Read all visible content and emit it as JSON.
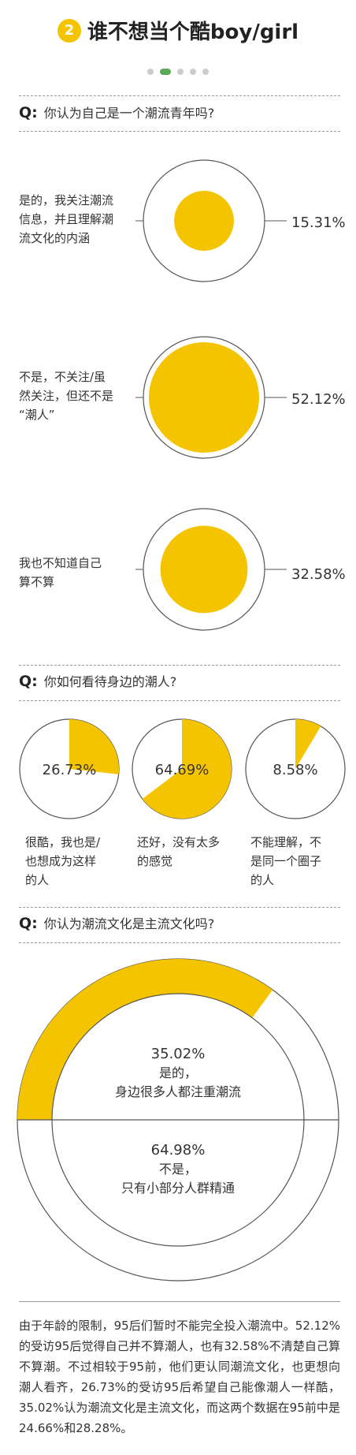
{
  "header": {
    "num": "2",
    "title": "谁不想当个酷boy/girl"
  },
  "pager": {
    "count": 5,
    "active": 1
  },
  "sections": [
    {
      "q": "Q:",
      "text": "你认为自己是一个潮流青年吗?"
    },
    {
      "q": "Q:",
      "text": "你如何看待身边的潮人?"
    },
    {
      "q": "Q:",
      "text": "你认为潮流文化是主流文化吗?"
    }
  ],
  "colors": {
    "accent": "#f5c400",
    "ring": "#555555"
  },
  "chart_data": [
    {
      "type": "bubble",
      "title": "你认为自己是一个潮流青年吗?",
      "items": [
        {
          "label": [
            "是的，我关注潮流",
            "信息，并且理解潮",
            "流文化的内涵"
          ],
          "value": 15.31,
          "text": "15.31%"
        },
        {
          "label": [
            "不是，不关注/虽",
            "然关注，但还不是",
            "“潮人”"
          ],
          "value": 52.12,
          "text": "52.12%"
        },
        {
          "label": [
            "我也不知道自己",
            "算不算"
          ],
          "value": 32.58,
          "text": "32.58%"
        }
      ]
    },
    {
      "type": "pie",
      "title": "你如何看待身边的潮人?",
      "items": [
        {
          "value": 26.73,
          "text": "26.73%",
          "label": [
            "很酷，我也是/",
            "也想成为这样",
            "的人"
          ]
        },
        {
          "value": 64.69,
          "text": "64.69%",
          "label": [
            "还好，没有太多",
            "的感觉"
          ]
        },
        {
          "value": 8.58,
          "text": "8.58%",
          "label": [
            "不能理解，不",
            "是同一个圈子",
            "的人"
          ]
        }
      ]
    },
    {
      "type": "donut",
      "title": "你认为潮流文化是主流文化吗?",
      "items": [
        {
          "value": 35.02,
          "text": "35.02%",
          "label": [
            "是的，",
            "身边很多人都注重潮流"
          ]
        },
        {
          "value": 64.98,
          "text": "64.98%",
          "label": [
            "不是，",
            "只有小部分人群精通"
          ]
        }
      ]
    }
  ],
  "footnote": "由于年龄的限制，95后们暂时不能完全投入潮流中。52.12%的受访95后觉得自己并不算潮人，也有32.58%不清楚自己算不算潮。不过相较于95前，他们更认同潮流文化，也更想向潮人看齐，26.73%的受访95后希望自己能像潮人一样酷，35.02%认为潮流文化是主流文化，而这两个数据在95前中是24.66%和28.28%。"
}
